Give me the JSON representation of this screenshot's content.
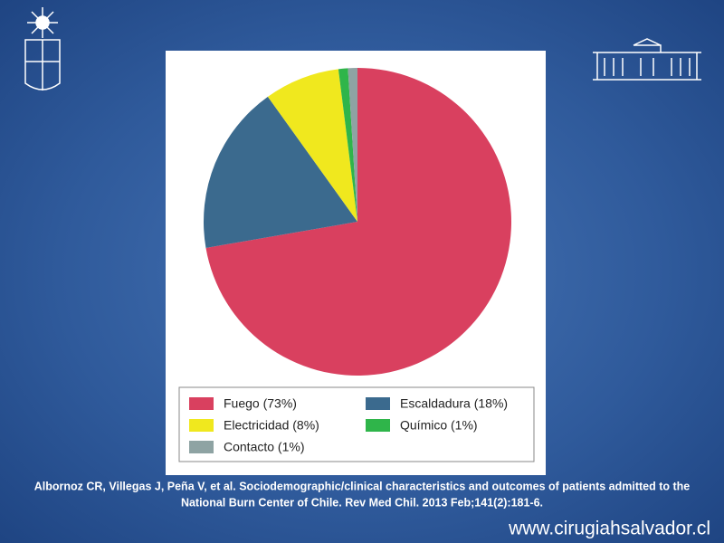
{
  "chart_data": {
    "type": "pie",
    "categories": [
      "Fuego (73%)",
      "Escaldadura (18%)",
      "Electricidad (8%)",
      "Químico (1%)",
      "Contacto (1%)"
    ],
    "values": [
      73,
      18,
      8,
      1,
      1
    ],
    "colors": [
      "#d9405f",
      "#3b6a8e",
      "#f0e81e",
      "#2fb54a",
      "#8ea3a3"
    ],
    "legend": "bottom"
  },
  "slide": {
    "citation": [
      "Albornoz CR, Villegas J, Peña V, et al. Sociodemographic/clinical characteristics and outcomes of patients admitted to the",
      "National Burn Center of Chile. Rev Med Chil. 2013 Feb;141(2):181-6."
    ],
    "website": "www.cirugiahsalvador.cl"
  }
}
